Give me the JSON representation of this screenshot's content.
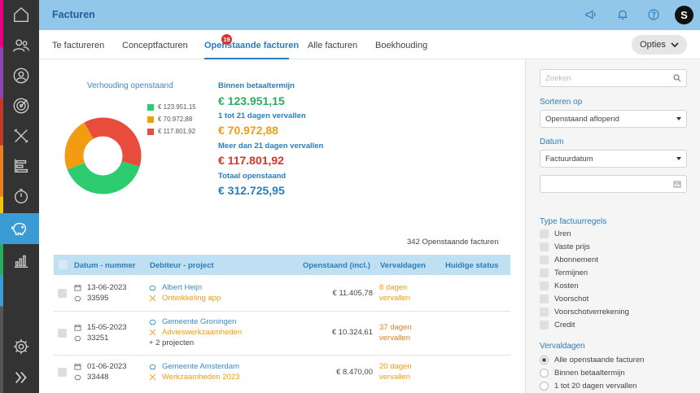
{
  "app": {
    "title": "Facturen",
    "avatar_letter": "S"
  },
  "tabs": [
    {
      "label": "Te factureren"
    },
    {
      "label": "Conceptfacturen",
      "badge": "19"
    },
    {
      "label": "Openstaande facturen"
    },
    {
      "label": "Alle facturen"
    },
    {
      "label": "Boekhouding"
    }
  ],
  "options_label": "Opties",
  "chart": {
    "title": "Verhouding openstaand"
  },
  "chart_data": {
    "type": "pie",
    "title": "Verhouding openstaand",
    "categories": [
      "€ 123.951,15",
      "€ 70.972,88",
      "€ 117.801,92"
    ],
    "values": [
      123951.15,
      70972.88,
      117801.92
    ],
    "colors": [
      "#2ecc71",
      "#f39c12",
      "#e74c3c"
    ],
    "legend": "right"
  },
  "stats": [
    {
      "label": "Binnen betaaltermijn",
      "value": "€ 123.951,15",
      "color": "#27ae60"
    },
    {
      "label": "1 tot 21 dagen vervallen",
      "value": "€ 70.972,88",
      "color": "#f39c12"
    },
    {
      "label": "Meer dan 21 dagen vervallen",
      "value": "€ 117.801,92",
      "color": "#d9342b"
    },
    {
      "label": "Totaal openstaand",
      "value": "€ 312.725,95",
      "color": "#2a7dbf"
    }
  ],
  "invoice_count": "342 Openstaande facturen",
  "table": {
    "headers": {
      "date": "Datum - nummer",
      "debtor": "Debiteur - project",
      "amount": "Openstaand (incl.)",
      "overdue": "Vervaldagen",
      "status": "Huidige status"
    },
    "rows": [
      {
        "date": "13-06-2023",
        "number": "33595",
        "debtor": "Albert Heijn",
        "project": "Ontwikkeling app",
        "extra": "",
        "amount": "€ 11.405,78",
        "overdue1": "8 dagen",
        "overdue2": "vervallen"
      },
      {
        "date": "15-05-2023",
        "number": "33251",
        "debtor": "Gemeente Groningen",
        "project": "Advieswerkzaamheden",
        "extra": "+ 2 projecten",
        "amount": "€ 10.324,61",
        "overdue1": "37 dagen",
        "overdue2": "vervallen"
      },
      {
        "date": "01-06-2023",
        "number": "33448",
        "debtor": "Gemeente Amsterdam",
        "project": "Werkzaamheden 2023",
        "extra": "",
        "amount": "€ 8.470,00",
        "overdue1": "20 dagen",
        "overdue2": "vervallen"
      }
    ]
  },
  "panel": {
    "search_placeholder": "Zoeken",
    "sort_label": "Sorteren op",
    "sort_value": "Openstaand aflopend",
    "date_label": "Datum",
    "date_value": "Factuurdatum",
    "type_label": "Type factuurregels",
    "types": [
      "Uren",
      "Vaste prijs",
      "Abonnement",
      "Termijnen",
      "Kosten",
      "Voorschot",
      "Voorschotverrekening",
      "Credit"
    ],
    "overdue_label": "Vervaldagen",
    "overdue_options": [
      "Alle openstaande facturen",
      "Binnen betaaltermijn",
      "1 tot 20 dagen vervallen"
    ]
  }
}
